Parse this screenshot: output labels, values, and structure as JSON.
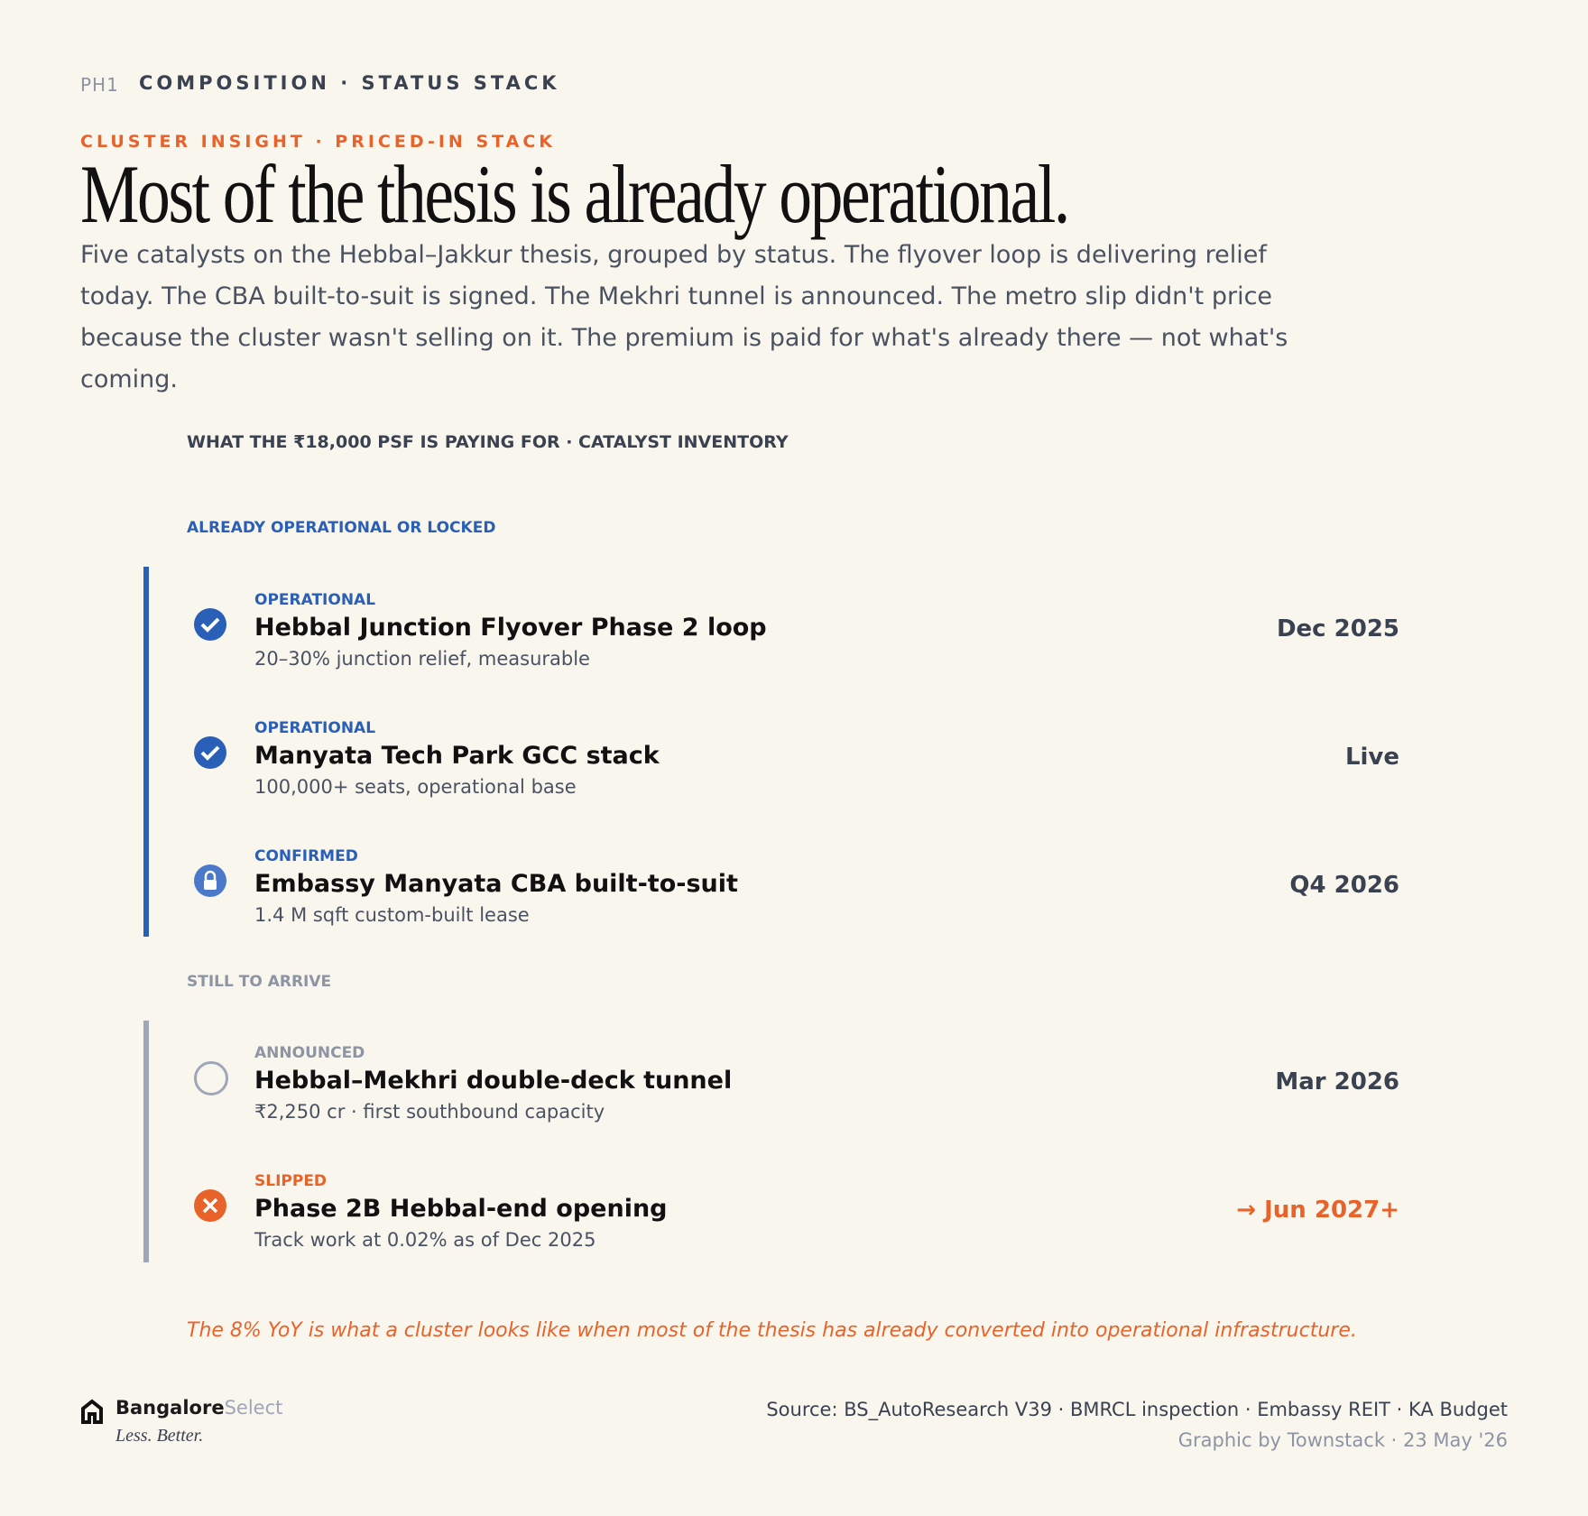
{
  "header": {
    "code": "PH1",
    "section": "COMPOSITION · STATUS STACK",
    "eyebrow": "CLUSTER INSIGHT · PRICED-IN STACK",
    "title": "Most of the thesis is already operational.",
    "body": "Five catalysts on the Hebbal–Jakkur thesis, grouped by status. The flyover loop is delivering relief today. The CBA built-to-suit is signed. The Mekhri tunnel is announced. The metro slip didn't price because the cluster wasn't selling on it. The premium is paid for what's already there — not what's coming."
  },
  "panel": {
    "title": "WHAT THE ₹18,000 PSF IS PAYING FOR · CATALYST INVENTORY",
    "groups": [
      {
        "label": "ALREADY OPERATIONAL OR LOCKED",
        "items": [
          {
            "status": "OPERATIONAL",
            "name": "Hebbal Junction Flyover Phase 2 loop",
            "detail": "20–30% junction relief, measurable",
            "date": "Dec 2025"
          },
          {
            "status": "OPERATIONAL",
            "name": "Manyata Tech Park GCC stack",
            "detail": "100,000+ seats, operational base",
            "date": "Live"
          },
          {
            "status": "CONFIRMED",
            "name": "Embassy Manyata CBA built-to-suit",
            "detail": "1.4 M sqft custom-built lease",
            "date": "Q4 2026"
          }
        ]
      },
      {
        "label": "STILL TO ARRIVE",
        "items": [
          {
            "status": "ANNOUNCED",
            "name": "Hebbal–Mekhri double-deck tunnel",
            "detail": "₹2,250 cr · first southbound capacity",
            "date": "Mar 2026"
          },
          {
            "status": "SLIPPED",
            "name": "Phase 2B Hebbal-end opening",
            "detail": "Track work at 0.02% as of Dec 2025",
            "date": "→ Jun 2027+"
          }
        ]
      }
    ],
    "note": "The 8% YoY is what a cluster looks like when most of the thesis has already converted into operational infrastructure."
  },
  "footer": {
    "brand": "Bangalore",
    "brand_suffix": "Select",
    "tagline": "Less. Better.",
    "source": "Source: BS_AutoResearch V39 · BMRCL inspection · Embassy REIT · KA Budget",
    "credit": "Graphic by Townstack · 23 May '26"
  }
}
